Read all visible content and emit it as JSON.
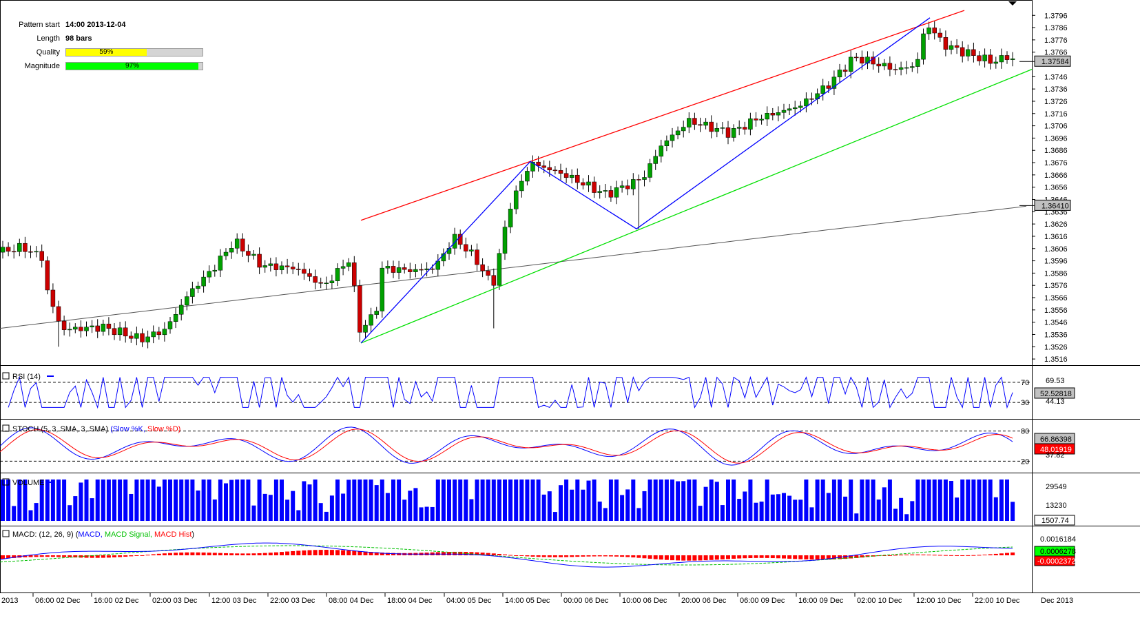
{
  "pattern_info": {
    "start_label": "Pattern start",
    "start_value": "14:00 2013-12-04",
    "length_label": "Length",
    "length_value": "98 bars",
    "quality_label": "Quality",
    "quality_pct": 59,
    "quality_text": "59%",
    "quality_color": "#ffff00",
    "magnitude_label": "Magnitude",
    "magnitude_pct": 97,
    "magnitude_text": "97%",
    "magnitude_color": "#00ff00"
  },
  "colors": {
    "bull": "#00a000",
    "bear": "#cc0000",
    "resistance": "#ff0000",
    "support": "#00e000",
    "zigzag": "#0000ff",
    "ma": "#555555",
    "rsi": "#0000ff",
    "stoch_k": "#0000ff",
    "stoch_d": "#ff0000",
    "volume": "#0000ff",
    "macd": "#0000ff",
    "signal": "#00c000",
    "hist": "#ff0000"
  },
  "chart_data": [
    {
      "type": "candlestick",
      "y_ticks": [
        "1.3796",
        "1.3786",
        "1.3776",
        "1.3766",
        "1.3746",
        "1.3736",
        "1.3726",
        "1.3716",
        "1.3706",
        "1.3696",
        "1.3686",
        "1.3676",
        "1.3666",
        "1.3656",
        "1.3646",
        "1.3636",
        "1.3626",
        "1.3616",
        "1.3606",
        "1.3596",
        "1.3586",
        "1.3576",
        "1.3566",
        "1.3556",
        "1.3546",
        "1.3536",
        "1.3526",
        "1.3516"
      ],
      "ylim": [
        1.3511,
        1.3804
      ],
      "last_price": "1.37584",
      "ma_last": "1.36410",
      "x_ticks": [
        "2013",
        "06:00 02 Dec",
        "16:00 02 Dec",
        "02:00 03 Dec",
        "12:00 03 Dec",
        "22:00 03 Dec",
        "08:00 04 Dec",
        "18:00 04 Dec",
        "04:00 05 Dec",
        "14:00 05 Dec",
        "00:00 06 Dec",
        "10:00 06 Dec",
        "20:00 06 Dec",
        "06:00 09 Dec",
        "16:00 09 Dec",
        "02:00 10 Dec",
        "12:00 10 Dec",
        "22:00 10 Dec",
        "Dec 2013"
      ]
    },
    {
      "type": "line",
      "name": "RSI (14)",
      "ylim": [
        0,
        100
      ],
      "levels": [
        "70",
        "30"
      ],
      "readouts": [
        "69.53",
        "52.52818",
        "44.13"
      ]
    },
    {
      "type": "line",
      "name": "STOCH (5, 3, SMA, 3, SMA)",
      "series_k": "Slow %K",
      "series_d": "Slow %D",
      "levels": [
        "80",
        "20"
      ],
      "readouts": [
        "66.86398",
        "48.01919",
        "37.82"
      ]
    },
    {
      "type": "bar",
      "name": "VOLUME",
      "readouts": [
        "29549",
        "13230",
        "1507.74"
      ]
    },
    {
      "type": "line",
      "name": "MACD",
      "params": "(12, 26, 9)",
      "series": [
        "MACD",
        "MACD Signal",
        "MACD Hist"
      ],
      "readouts": [
        "0.0016184",
        "0.0006278",
        "-0.0002372"
      ]
    }
  ]
}
